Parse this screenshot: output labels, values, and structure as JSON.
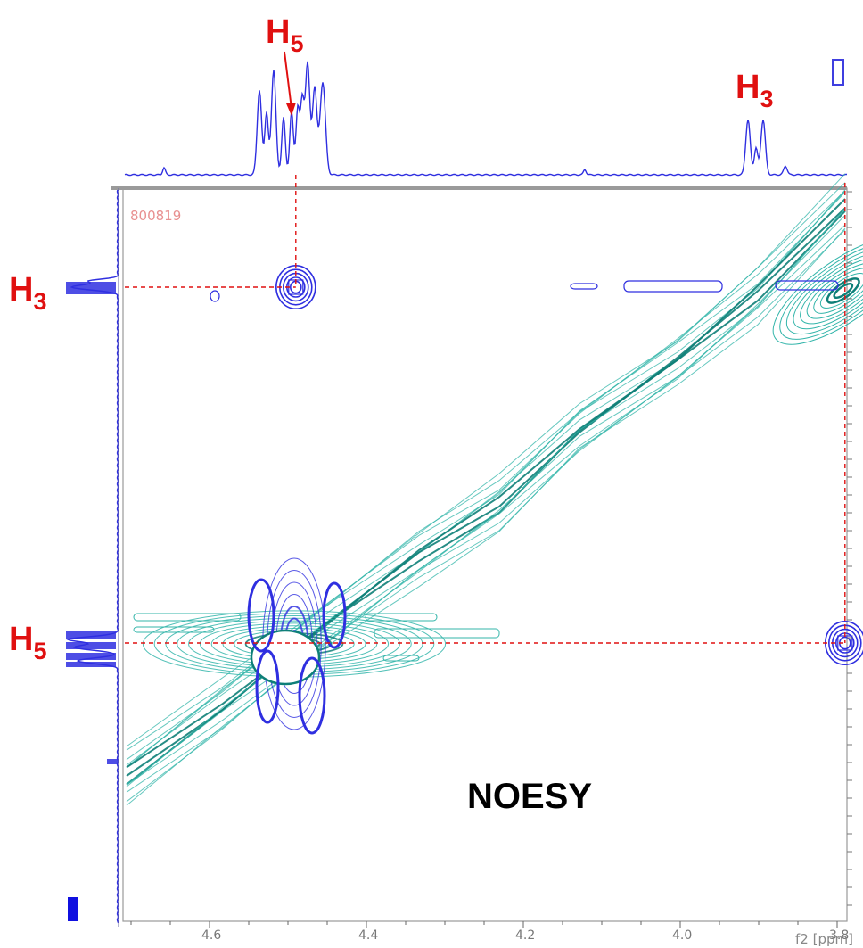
{
  "chart_data": {
    "type": "contour",
    "title": "NOESY",
    "sample_id": "800819",
    "axis_label": "f2 [ppm]",
    "x_ticks": [
      "4.6",
      "4.4",
      "4.2",
      "4.0",
      "3.8"
    ],
    "xlim": [
      4.76,
      3.72
    ],
    "peak_labels": {
      "top_h5": "H",
      "top_h5_sub": "5",
      "top_h3": "H",
      "top_h3_sub": "3",
      "left_h3": "H",
      "left_h3_sub": "3",
      "left_h5": "H",
      "left_h5_sub": "5"
    },
    "peaks": {
      "H5_ppm": 4.49,
      "H3_ppm": 3.79
    },
    "cross_peaks": [
      {
        "name": "H5-H3",
        "x": 4.49,
        "y": 3.79
      },
      {
        "name": "H3-H5",
        "x": 3.79,
        "y": 4.49
      }
    ],
    "colors": {
      "negative_contour": "#2f2fe0",
      "positive_contour": "#33b5aa",
      "positive_dark": "#0e7f78",
      "annotation": "#e01010",
      "frame": "#9a9a9a"
    }
  }
}
